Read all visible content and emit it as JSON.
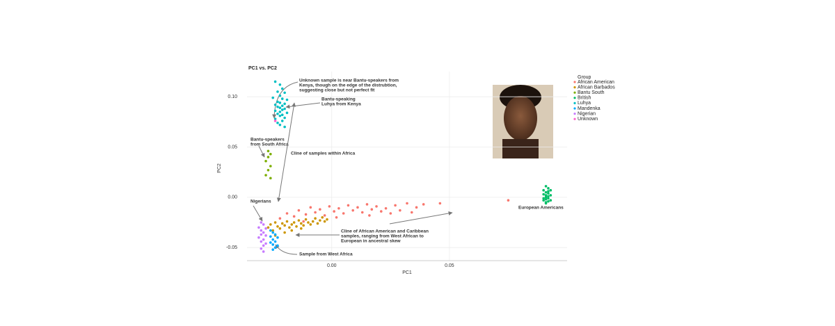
{
  "chart_data": {
    "type": "scatter",
    "title": "PC1 vs. PC2",
    "x_label": "PC1",
    "y_label": "PC2",
    "legend_title": "Group",
    "grid": true,
    "legend_position": "right",
    "xlim": [
      -0.036,
      0.1
    ],
    "ylim": [
      -0.063,
      0.125
    ],
    "xticks": [
      {
        "value": 0,
        "label": "0.00"
      },
      {
        "value": 0.05,
        "label": "0.05"
      }
    ],
    "yticks": [
      {
        "value": -0.05,
        "label": "-0.05"
      },
      {
        "value": 0,
        "label": "0.00"
      },
      {
        "value": 0.05,
        "label": "0.05"
      },
      {
        "value": 0.1,
        "label": "0.10"
      }
    ],
    "series": [
      {
        "name": "African American",
        "color": "#F8766D",
        "x": [
          -0.022,
          -0.019,
          -0.016,
          -0.014,
          -0.011,
          -0.009,
          -0.007,
          -0.005,
          -0.003,
          -0.001,
          0.001,
          0.003,
          0.005,
          0.007,
          0.009,
          0.011,
          0.013,
          0.015,
          0.017,
          0.019,
          0.021,
          0.023,
          0.025,
          0.027,
          0.029,
          0.032,
          0.034,
          0.036,
          0.039,
          0.046,
          -0.012,
          0.002,
          0.016,
          0.075
        ],
        "values": [
          -0.021,
          -0.016,
          -0.019,
          -0.013,
          -0.017,
          -0.01,
          -0.015,
          -0.012,
          -0.018,
          -0.009,
          -0.014,
          -0.011,
          -0.016,
          -0.008,
          -0.013,
          -0.01,
          -0.015,
          -0.007,
          -0.012,
          -0.009,
          -0.014,
          -0.011,
          -0.016,
          -0.008,
          -0.013,
          -0.006,
          -0.015,
          -0.01,
          -0.007,
          -0.006,
          -0.024,
          -0.02,
          -0.018,
          -0.003
        ]
      },
      {
        "name": "African Barbados",
        "color": "#CD9600",
        "x": [
          -0.027,
          -0.026,
          -0.025,
          -0.024,
          -0.023,
          -0.022,
          -0.021,
          -0.02,
          -0.019,
          -0.018,
          -0.017,
          -0.016,
          -0.015,
          -0.014,
          -0.013,
          -0.012,
          -0.011,
          -0.01,
          -0.009,
          -0.008,
          -0.007,
          -0.006,
          -0.005,
          -0.004,
          -0.003,
          -0.002,
          -0.02,
          -0.017,
          -0.013,
          -0.024
        ],
        "values": [
          -0.03,
          -0.027,
          -0.033,
          -0.025,
          -0.029,
          -0.031,
          -0.026,
          -0.028,
          -0.024,
          -0.03,
          -0.027,
          -0.025,
          -0.029,
          -0.023,
          -0.026,
          -0.028,
          -0.022,
          -0.025,
          -0.027,
          -0.024,
          -0.021,
          -0.026,
          -0.023,
          -0.02,
          -0.024,
          -0.022,
          -0.035,
          -0.033,
          -0.031,
          -0.038
        ]
      },
      {
        "name": "Bantu South",
        "color": "#7CAE00",
        "x": [
          -0.027,
          -0.026,
          -0.027,
          -0.028,
          -0.026,
          -0.027,
          -0.028,
          -0.026
        ],
        "values": [
          0.046,
          0.043,
          0.04,
          0.036,
          0.031,
          0.027,
          0.022,
          0.019
        ]
      },
      {
        "name": "British",
        "color": "#00BE67",
        "x": [
          0.091,
          0.092,
          0.09,
          0.093,
          0.091,
          0.092,
          0.09,
          0.091,
          0.093,
          0.092,
          0.091,
          0.09,
          0.092,
          0.091,
          0.093,
          0.09,
          0.092,
          0.091,
          0.092,
          0.091
        ],
        "values": [
          0.011,
          0.009,
          0.007,
          0.007,
          0.005,
          0.004,
          0.003,
          0.002,
          0.002,
          0.001,
          0.0,
          -0.001,
          -0.001,
          -0.002,
          -0.003,
          -0.003,
          -0.004,
          -0.005,
          0.006,
          -0.006
        ]
      },
      {
        "name": "Luhya",
        "color": "#00BFC4",
        "x": [
          -0.024,
          -0.022,
          -0.021,
          -0.023,
          -0.02,
          -0.022,
          -0.025,
          -0.021,
          -0.019,
          -0.023,
          -0.022,
          -0.02,
          -0.024,
          -0.021,
          -0.023,
          -0.022,
          -0.02,
          -0.021,
          -0.024,
          -0.022,
          -0.019,
          -0.023,
          -0.021,
          -0.022,
          -0.02,
          -0.024,
          -0.021,
          -0.023,
          -0.022,
          -0.02
        ],
        "values": [
          0.115,
          0.112,
          0.108,
          0.105,
          0.104,
          0.101,
          0.099,
          0.098,
          0.097,
          0.095,
          0.094,
          0.093,
          0.092,
          0.091,
          0.09,
          0.089,
          0.088,
          0.087,
          0.086,
          0.085,
          0.084,
          0.083,
          0.082,
          0.081,
          0.079,
          0.078,
          0.076,
          0.074,
          0.072,
          0.07
        ]
      },
      {
        "name": "Mandenka",
        "color": "#00A9FF",
        "x": [
          -0.026,
          -0.025,
          -0.024,
          -0.026,
          -0.023,
          -0.025,
          -0.024,
          -0.026,
          -0.025,
          -0.023,
          -0.024,
          -0.025
        ],
        "values": [
          -0.033,
          -0.035,
          -0.037,
          -0.039,
          -0.04,
          -0.042,
          -0.044,
          -0.045,
          -0.047,
          -0.048,
          -0.05,
          -0.052
        ]
      },
      {
        "name": "Nigerian",
        "color": "#C77CFF",
        "x": [
          -0.03,
          -0.029,
          -0.031,
          -0.028,
          -0.03,
          -0.029,
          -0.03,
          -0.028,
          -0.031,
          -0.029,
          -0.03,
          -0.028,
          -0.029,
          -0.03,
          -0.029
        ],
        "values": [
          -0.025,
          -0.027,
          -0.03,
          -0.031,
          -0.033,
          -0.035,
          -0.037,
          -0.038,
          -0.04,
          -0.042,
          -0.044,
          -0.046,
          -0.048,
          -0.051,
          -0.054
        ]
      },
      {
        "name": "Unknown",
        "color": "#FF61CC",
        "x": [
          -0.024
        ],
        "values": [
          0.076
        ]
      }
    ],
    "annotations": [
      [
        "Unknown sample is near Bantu-speakers from",
        "Kenya, though on the edge of the distrubtion,",
        "suggesting close but not perfect fit"
      ],
      [
        "Bantu-speaking",
        "Luhya from Kenya"
      ],
      [
        "Bantu-speakers",
        "from South Africa"
      ],
      [
        "Cline of samples within Africa"
      ],
      [
        "Nigerians"
      ],
      [
        "European Americans"
      ],
      [
        "Cline of African American and Caribbean",
        "samples, ranging from West African to",
        "European in ancestral skew"
      ],
      [
        "Sample from West Africa"
      ]
    ]
  }
}
